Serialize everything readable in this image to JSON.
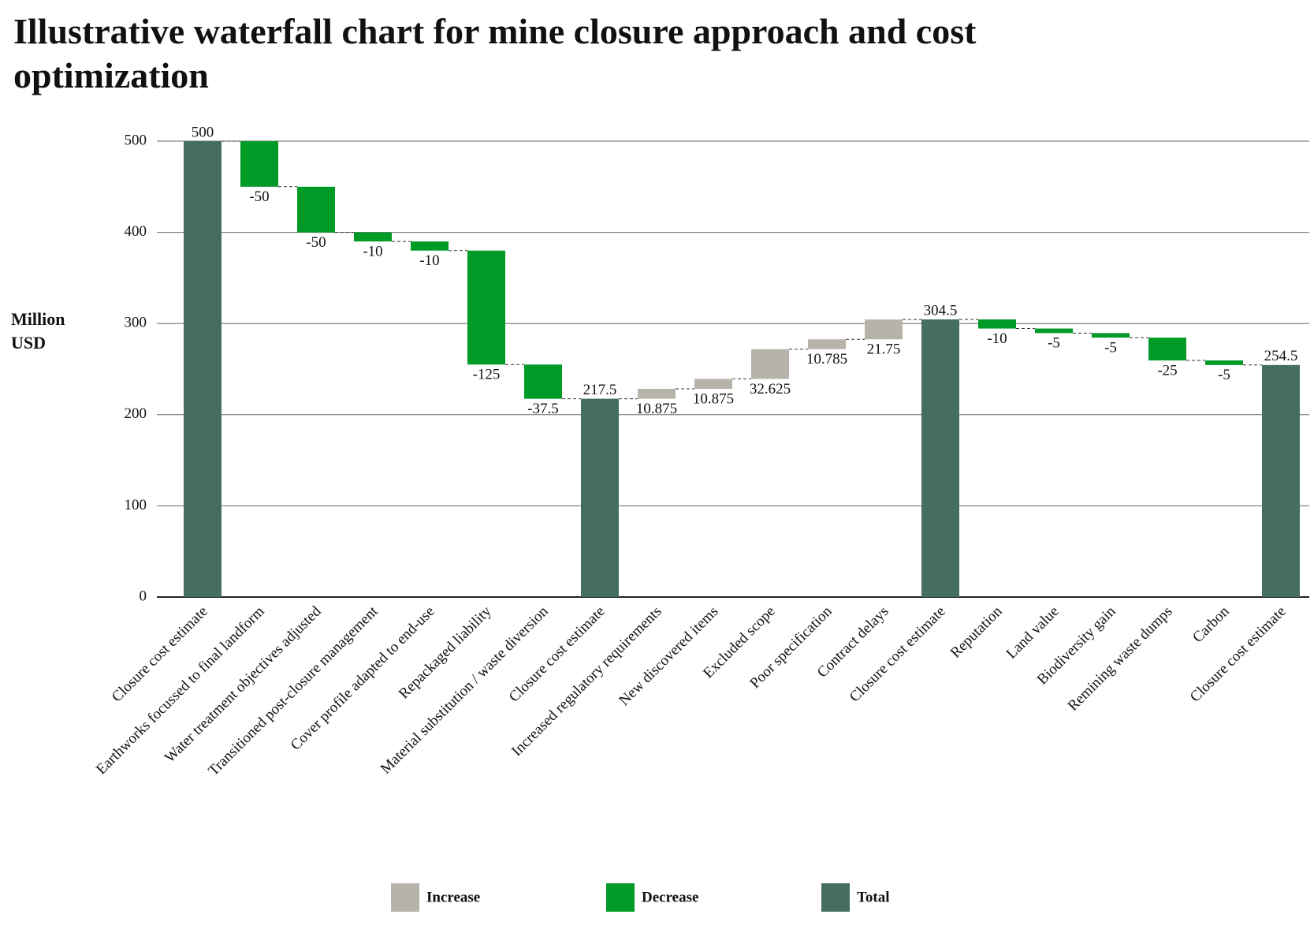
{
  "chart_data": {
    "type": "waterfall",
    "title": "Illustrative waterfall chart for mine closure approach and cost optimization",
    "y_label": "Million USD",
    "categories": [
      "Closure cost estimate",
      "Earthworks focussed to final landform",
      "Water treatment objectives adjusted",
      "Transitioned post-closure management",
      "Cover profile adapted to end-use",
      "Repackaged liability",
      "Material substitution / waste diversion",
      "Closure cost estimate",
      "Increased regulatory requirements",
      "New discovered items",
      "Excluded scope",
      "Poor specification",
      "Contract delays",
      "Closure cost estimate",
      "Reputation",
      "Land value",
      "Biodiversity gain",
      "Remining waste dumps",
      "Carbon",
      "Closure cost estimate"
    ],
    "values": [
      500,
      -50,
      -50,
      -10,
      -10,
      -125,
      -37.5,
      217.5,
      10.875,
      10.875,
      32.625,
      10.785,
      21.75,
      304.5,
      -10,
      -5,
      -5,
      -25,
      -5,
      254.5
    ],
    "measures": [
      "total",
      "relative",
      "relative",
      "relative",
      "relative",
      "relative",
      "relative",
      "total",
      "relative",
      "relative",
      "relative",
      "relative",
      "relative",
      "total",
      "relative",
      "relative",
      "relative",
      "relative",
      "relative",
      "total"
    ],
    "legend": [
      {
        "name": "Increase",
        "color": "#b8b3aa"
      },
      {
        "name": "Decrease",
        "color": "#009a27"
      },
      {
        "name": "Total",
        "color": "#456e5e"
      }
    ],
    "ylim": [
      0,
      500
    ],
    "yticks": [
      0,
      100,
      200,
      300,
      400,
      500
    ],
    "grid": true
  }
}
